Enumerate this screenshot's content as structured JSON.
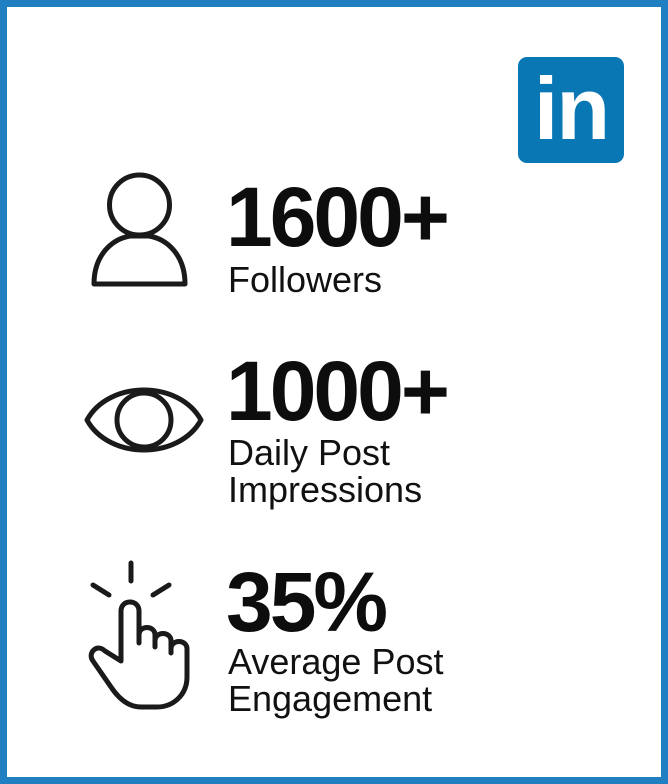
{
  "logo": {
    "text": "in",
    "icon": "linkedin-logo",
    "bg_color": "#0a77b5"
  },
  "frame": {
    "border_color": "#1f7fc0"
  },
  "stats": [
    {
      "icon": "person-icon",
      "value": "1600+",
      "label": "Followers"
    },
    {
      "icon": "eye-icon",
      "value": "1000+",
      "label": "Daily Post\nImpressions"
    },
    {
      "icon": "tap-finger-icon",
      "value": "35%",
      "label": "Average Post\nEngagement"
    }
  ]
}
